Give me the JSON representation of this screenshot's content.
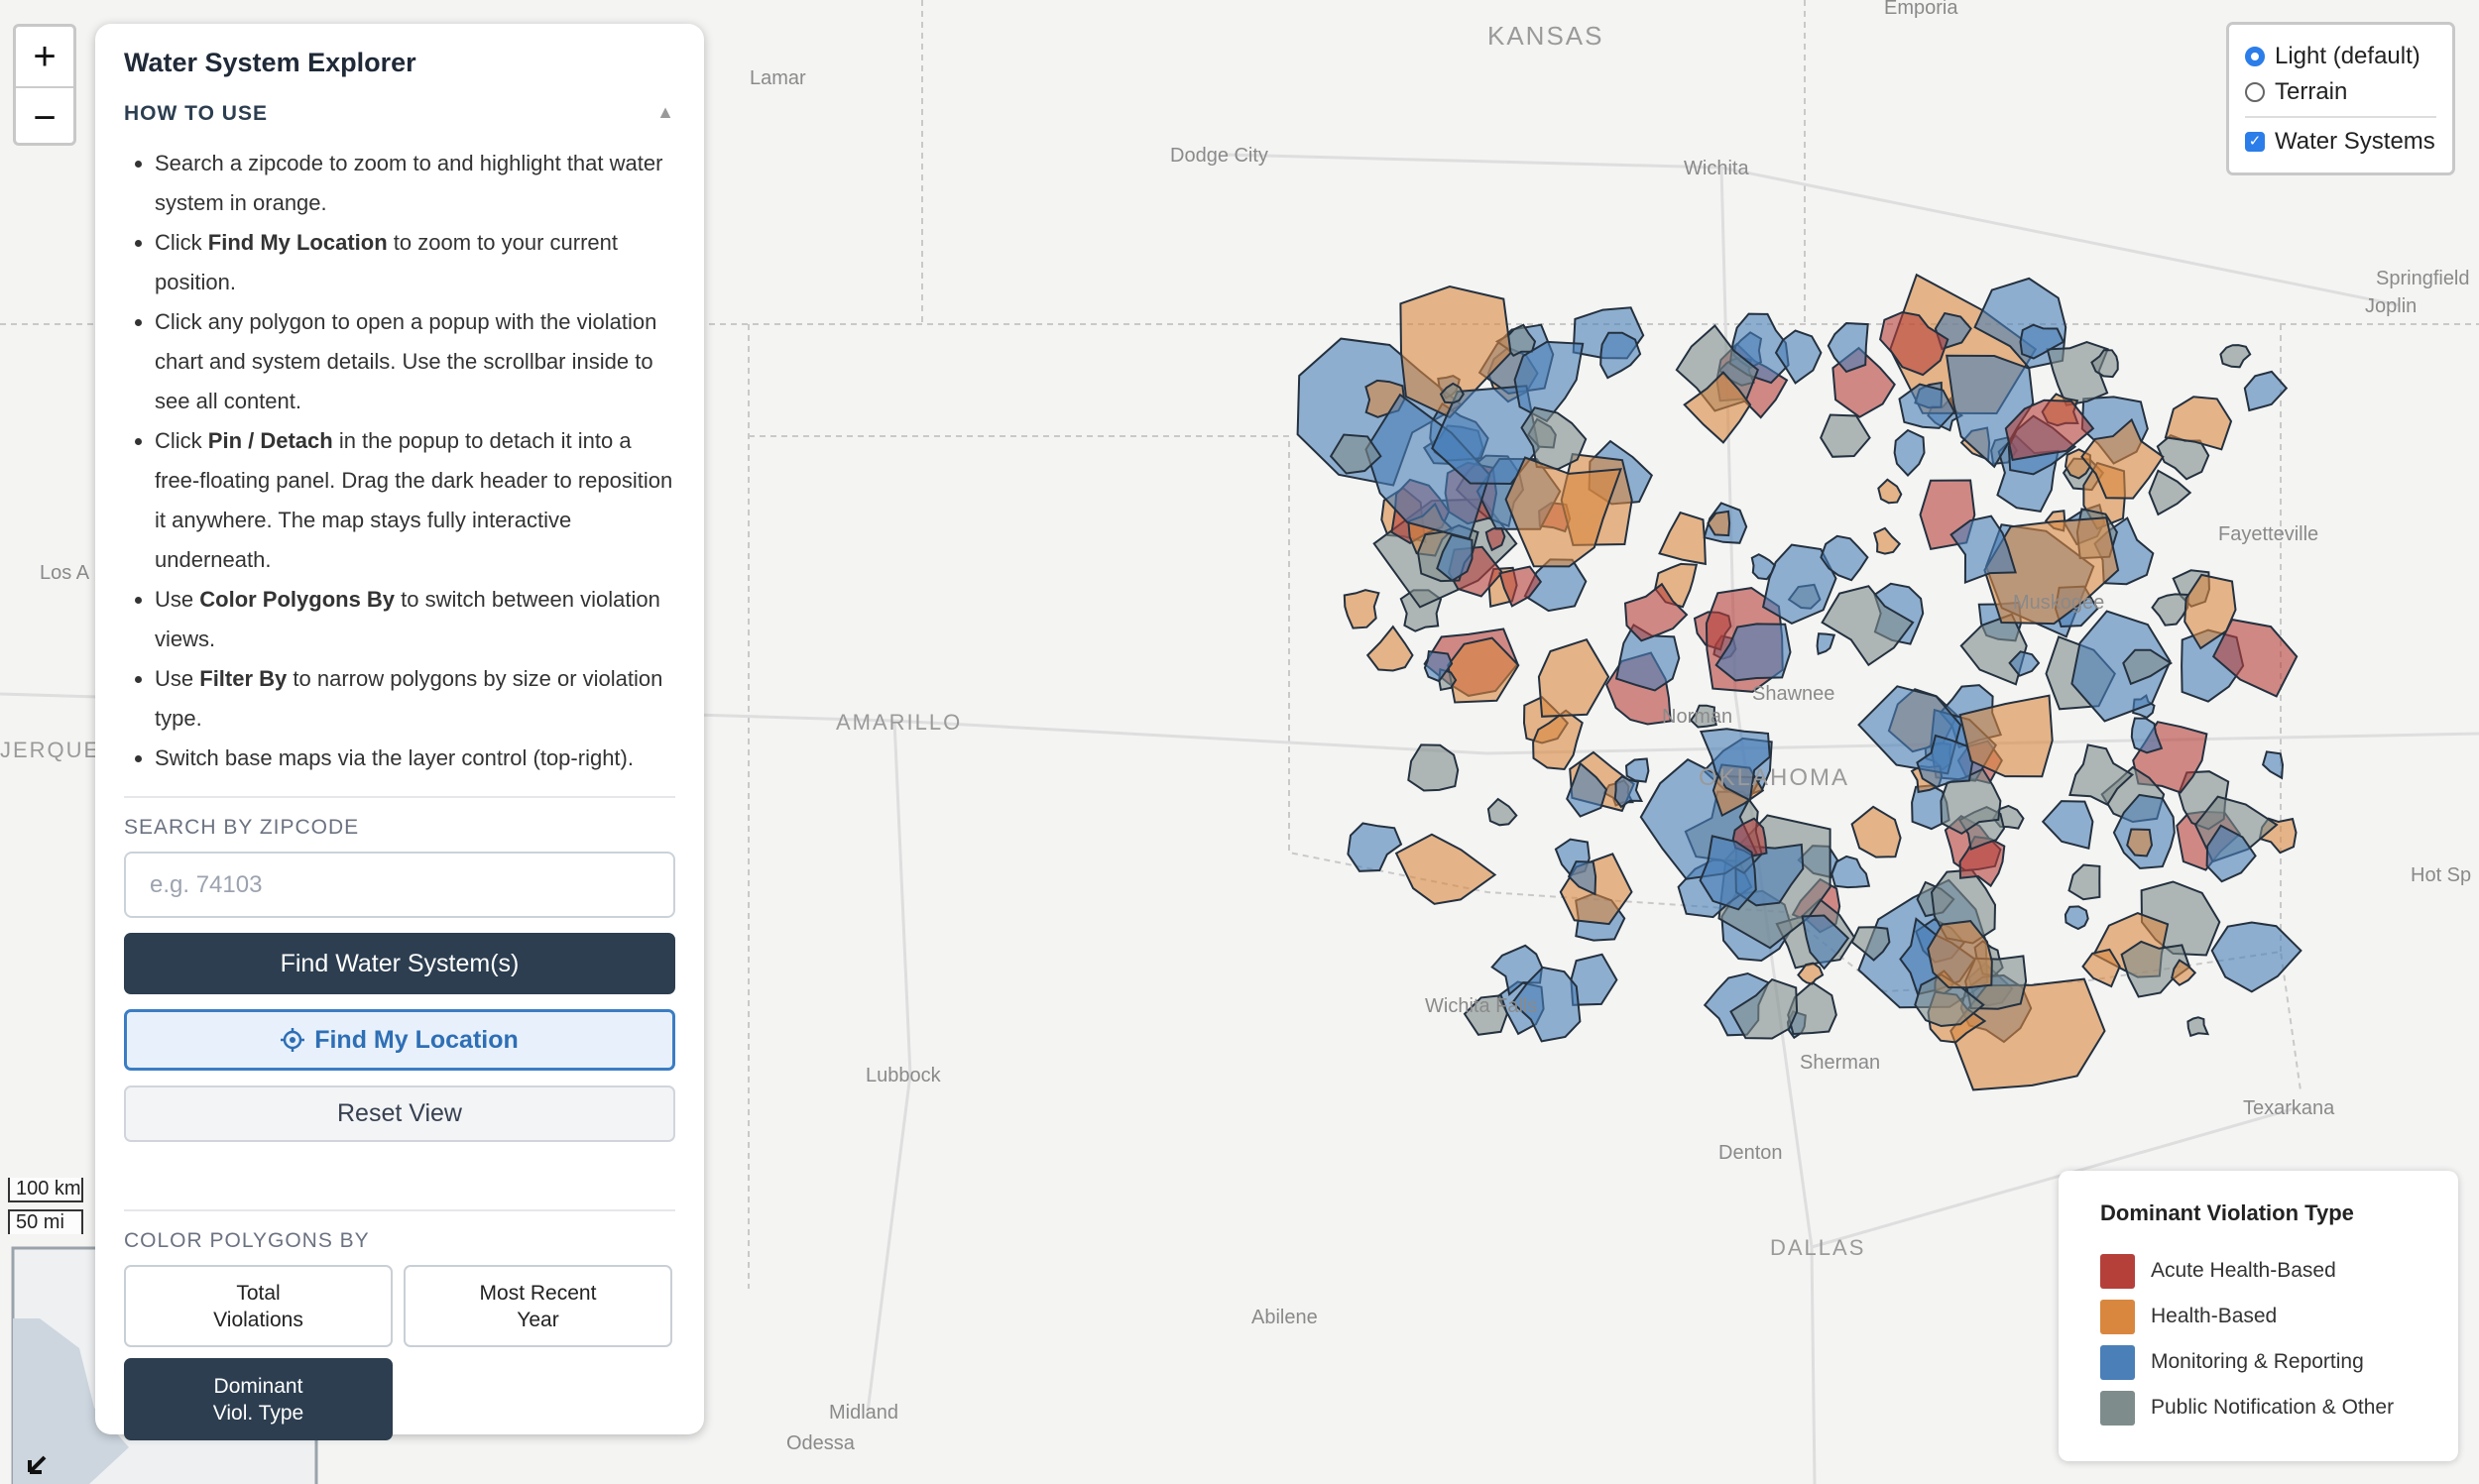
{
  "map": {
    "labels": [
      "KANSAS",
      "Emporia",
      "Lamar",
      "Dodge City",
      "Wichita",
      "Springfield",
      "Joplin",
      "Los A",
      "Fayetteville",
      "Muskogee",
      "AMARILLO",
      "JERQUE",
      "Shawnee",
      "Norman",
      "OKLAHOMA",
      "Hot Sp",
      "Wichita Falls",
      "Sherman",
      "Lubbock",
      "Texarkana",
      "Denton",
      "DALLAS",
      "Abilene",
      "Midland",
      "Odessa"
    ]
  },
  "zoom": [
    "+",
    "−"
  ],
  "scale": [
    "100 km",
    "50 mi"
  ],
  "panel": {
    "title": "Water System Explorer",
    "how_to_use": {
      "heading": "HOW TO USE",
      "items": [
        {
          "parts": [
            {
              "text": "Search a zipcode to zoom to and highlight that water system in orange.",
              "bold": false
            }
          ]
        },
        {
          "parts": [
            {
              "text": "Click ",
              "bold": false
            },
            {
              "text": "Find My Location",
              "bold": true
            },
            {
              "text": " to zoom to your current position.",
              "bold": false
            }
          ]
        },
        {
          "parts": [
            {
              "text": "Click any polygon to open a popup with the violation chart and system details. Use the scrollbar inside to see all content.",
              "bold": false
            }
          ]
        },
        {
          "parts": [
            {
              "text": "Click ",
              "bold": false
            },
            {
              "text": "Pin / Detach",
              "bold": true
            },
            {
              "text": " in the popup to detach it into a free-floating panel. Drag the dark header to reposition it anywhere. The map stays fully interactive underneath.",
              "bold": false
            }
          ]
        },
        {
          "parts": [
            {
              "text": "Use ",
              "bold": false
            },
            {
              "text": "Color Polygons By",
              "bold": true
            },
            {
              "text": " to switch between violation views.",
              "bold": false
            }
          ]
        },
        {
          "parts": [
            {
              "text": "Use ",
              "bold": false
            },
            {
              "text": "Filter By",
              "bold": true
            },
            {
              "text": " to narrow polygons by size or violation type.",
              "bold": false
            }
          ]
        },
        {
          "parts": [
            {
              "text": "Switch base maps via the layer control (top-right).",
              "bold": false
            }
          ]
        }
      ]
    },
    "search": {
      "label": "SEARCH BY ZIPCODE",
      "placeholder": "e.g. 74103",
      "find_button": "Find Water System(s)",
      "locate_button": "Find My Location",
      "reset_button": "Reset View"
    },
    "color_by": {
      "label": "COLOR POLYGONS BY",
      "options": [
        {
          "lines": [
            "Total",
            "Violations"
          ],
          "selected": false
        },
        {
          "lines": [
            "Most Recent",
            "Year"
          ],
          "selected": false
        },
        {
          "lines": [
            "Dominant",
            "Viol. Type"
          ],
          "selected": true
        }
      ]
    }
  },
  "layers": {
    "base": [
      {
        "label": "Light (default)",
        "checked": true
      },
      {
        "label": "Terrain",
        "checked": false
      }
    ],
    "overlays": [
      {
        "label": "Water Systems",
        "checked": true
      }
    ]
  },
  "legend": {
    "title": "Dominant Violation Type",
    "items": [
      {
        "label": "Acute Health-Based",
        "color": "#b5403a"
      },
      {
        "label": "Health-Based",
        "color": "#d9873f"
      },
      {
        "label": "Monitoring & Reporting",
        "color": "#4a7fb8"
      },
      {
        "label": "Public Notification & Other",
        "color": "#7f8c8c"
      }
    ]
  }
}
